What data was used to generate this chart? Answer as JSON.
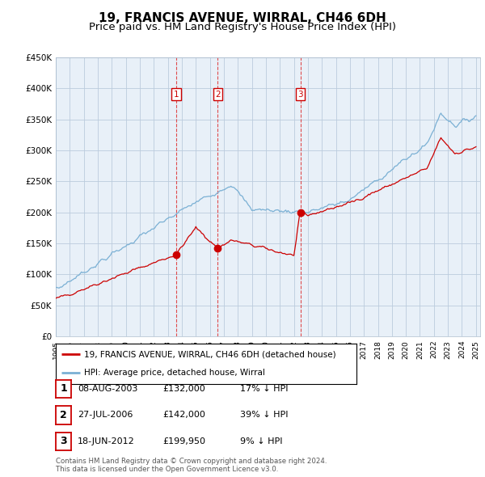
{
  "title": "19, FRANCIS AVENUE, WIRRAL, CH46 6DH",
  "subtitle": "Price paid vs. HM Land Registry's House Price Index (HPI)",
  "title_fontsize": 11,
  "subtitle_fontsize": 9.5,
  "ylim": [
    0,
    450000
  ],
  "yticks": [
    0,
    50000,
    100000,
    150000,
    200000,
    250000,
    300000,
    350000,
    400000,
    450000
  ],
  "ytick_labels": [
    "£0",
    "£50K",
    "£100K",
    "£150K",
    "£200K",
    "£250K",
    "£300K",
    "£350K",
    "£400K",
    "£450K"
  ],
  "x_start_year": 1995,
  "x_end_year": 2025,
  "sale_color": "#cc0000",
  "hpi_color": "#7ab0d4",
  "chart_bg": "#e8f0f8",
  "background_color": "#ffffff",
  "grid_color": "#bbccdd",
  "transactions": [
    {
      "date": 2003.6,
      "price": 132000,
      "label": "1"
    },
    {
      "date": 2006.57,
      "price": 142000,
      "label": "2"
    },
    {
      "date": 2012.46,
      "price": 199950,
      "label": "3"
    }
  ],
  "legend_entries": [
    "19, FRANCIS AVENUE, WIRRAL, CH46 6DH (detached house)",
    "HPI: Average price, detached house, Wirral"
  ],
  "table_data": [
    {
      "num": "1",
      "date": "08-AUG-2003",
      "price": "£132,000",
      "pct": "17% ↓ HPI"
    },
    {
      "num": "2",
      "date": "27-JUL-2006",
      "price": "£142,000",
      "pct": "39% ↓ HPI"
    },
    {
      "num": "3",
      "date": "18-JUN-2012",
      "price": "£199,950",
      "pct": "9% ↓ HPI"
    }
  ],
  "footnote": "Contains HM Land Registry data © Crown copyright and database right 2024.\nThis data is licensed under the Open Government Licence v3.0."
}
